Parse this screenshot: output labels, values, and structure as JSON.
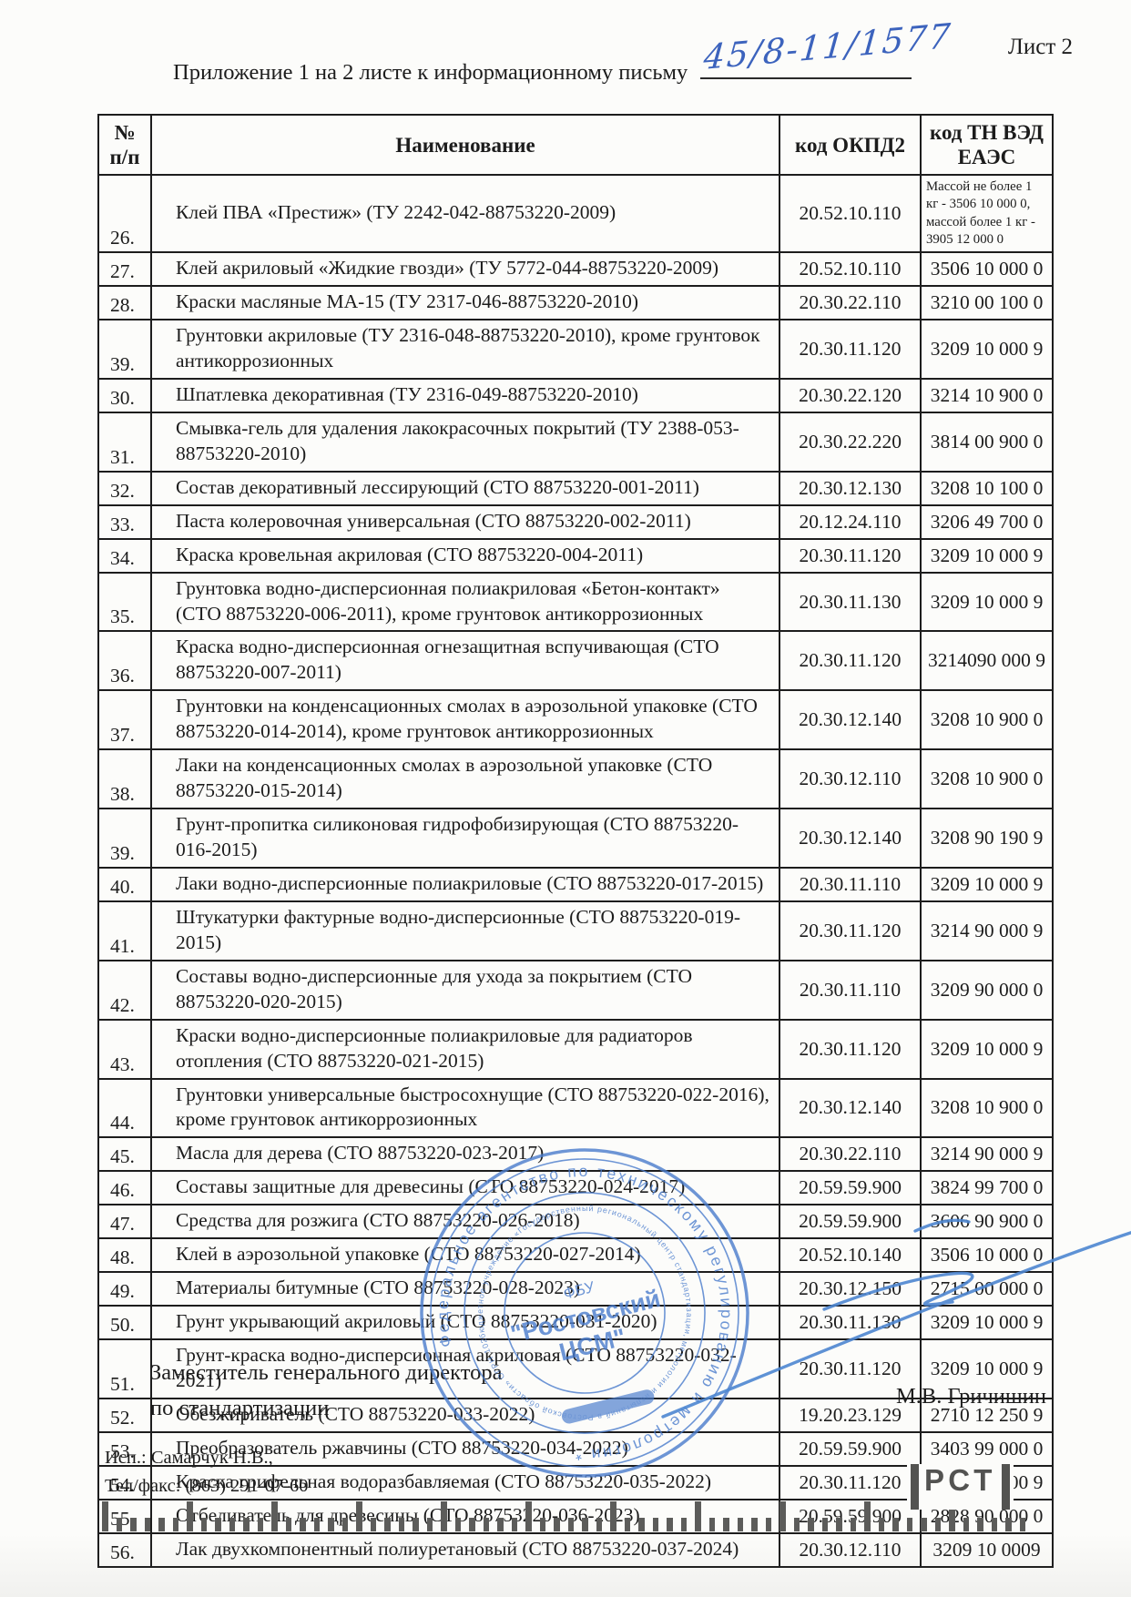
{
  "page": {
    "sheet_label": "Лист 2",
    "title": "Приложение 1 на 2 листе к информационному письму",
    "handwritten_number": "45/8-11/1577"
  },
  "table": {
    "columns": {
      "num_top": "№",
      "num_bottom": "п/п",
      "name": "Наименование",
      "okpd2": "код ОКПД2",
      "tnved": "код ТН ВЭД ЕАЭС"
    },
    "rows": [
      {
        "num": "26.",
        "name": "Клей ПВА «Престиж» (ТУ 2242-042-88753220-2009)",
        "okpd2": "20.52.10.110",
        "tnved": "Массой не более 1 кг - 3506 10 000 0, массой более 1 кг - 3905 12 000 0"
      },
      {
        "num": "27.",
        "name": "Клей акриловый «Жидкие гвозди» (ТУ 5772-044-88753220-2009)",
        "okpd2": "20.52.10.110",
        "tnved": "3506 10 000 0"
      },
      {
        "num": "28.",
        "name": "Краски масляные МА-15 (ТУ 2317-046-88753220-2010)",
        "okpd2": "20.30.22.110",
        "tnved": "3210 00 100 0"
      },
      {
        "num": "39.",
        "name": "Грунтовки акриловые (ТУ 2316-048-88753220-2010), кроме грунтовок антикоррозионных",
        "okpd2": "20.30.11.120",
        "tnved": "3209 10 000 9"
      },
      {
        "num": "30.",
        "name": "Шпатлевка декоративная  (ТУ 2316-049-88753220-2010)",
        "okpd2": "20.30.22.120",
        "tnved": "3214 10 900 0"
      },
      {
        "num": "31.",
        "name": "Смывка-гель для удаления лакокрасочных покрытий (ТУ 2388-053-88753220-2010)",
        "okpd2": "20.30.22.220",
        "tnved": "3814 00 900 0"
      },
      {
        "num": "32.",
        "name": "Состав декоративный лессирующий (СТО 88753220-001-2011)",
        "okpd2": "20.30.12.130",
        "tnved": "3208 10 100 0"
      },
      {
        "num": "33.",
        "name": "Паста колеровочная универсальная (СТО 88753220-002-2011)",
        "okpd2": "20.12.24.110",
        "tnved": "3206 49 700 0"
      },
      {
        "num": "34.",
        "name": "Краска кровельная акриловая (СТО 88753220-004-2011)",
        "okpd2": "20.30.11.120",
        "tnved": "3209 10 000 9"
      },
      {
        "num": "35.",
        "name": "Грунтовка водно-дисперсионная полиакриловая «Бетон-контакт» (СТО 88753220-006-2011), кроме грунтовок антикоррозионных",
        "okpd2": "20.30.11.130",
        "tnved": "3209 10 000 9"
      },
      {
        "num": "36.",
        "name": "Краска водно-дисперсионная огнезащитная вспучивающая (СТО 88753220-007-2011)",
        "okpd2": "20.30.11.120",
        "tnved": "3214090 000 9"
      },
      {
        "num": "37.",
        "name": "Грунтовки на конденсационных смолах в аэрозольной упаковке (СТО 88753220-014-2014), кроме грунтовок антикоррозионных",
        "okpd2": "20.30.12.140",
        "tnved": "3208 10 900 0"
      },
      {
        "num": "38.",
        "name": "Лаки на конденсационных смолах в аэрозольной упаковке (СТО 88753220-015-2014)",
        "okpd2": "20.30.12.110",
        "tnved": "3208 10 900 0"
      },
      {
        "num": "39.",
        "name": "Грунт-пропитка силиконовая гидрофобизирующая (СТО 88753220-016-2015)",
        "okpd2": "20.30.12.140",
        "tnved": "3208 90 190 9"
      },
      {
        "num": "40.",
        "name": "Лаки водно-дисперсионные полиакриловые (СТО 88753220-017-2015)",
        "okpd2": "20.30.11.110",
        "tnved": "3209 10 000 9"
      },
      {
        "num": "41.",
        "name": "Штукатурки фактурные водно-дисперсионные (СТО 88753220-019-2015)",
        "okpd2": "20.30.11.120",
        "tnved": "3214 90 000 9"
      },
      {
        "num": "42.",
        "name": "Составы водно-дисперсионные для ухода за покрытием (СТО 88753220-020-2015)",
        "okpd2": "20.30.11.110",
        "tnved": "3209 90 000 0"
      },
      {
        "num": "43.",
        "name": "Краски водно-дисперсионные полиакриловые для радиаторов отопления (СТО 88753220-021-2015)",
        "okpd2": "20.30.11.120",
        "tnved": "3209 10 000 9"
      },
      {
        "num": "44.",
        "name": "Грунтовки универсальные быстросохнущие (СТО 88753220-022-2016), кроме грунтовок антикоррозионных",
        "okpd2": "20.30.12.140",
        "tnved": "3208 10 900 0"
      },
      {
        "num": "45.",
        "name": "Масла для дерева (СТО 88753220-023-2017)",
        "okpd2": "20.30.22.110",
        "tnved": "3214 90 000 9"
      },
      {
        "num": "46.",
        "name": "Составы защитные для древесины (СТО 88753220-024-2017)",
        "okpd2": "20.59.59.900",
        "tnved": "3824 99 700 0"
      },
      {
        "num": "47.",
        "name": "Средства для розжига (СТО 88753220-026-2018)",
        "okpd2": "20.59.59.900",
        "tnved": "3606 90 900 0"
      },
      {
        "num": "48.",
        "name": "Клей в аэрозольной упаковке (СТО 88753220-027-2014)",
        "okpd2": "20.52.10.140",
        "tnved": "3506 10 000 0"
      },
      {
        "num": "49.",
        "name": "Материалы битумные (СТО 88753220-028-2023)",
        "okpd2": "20.30.12.150",
        "tnved": "2715 00 000 0"
      },
      {
        "num": "50.",
        "name": "Грунт укрывающий акриловый (СТО 88753220-031-2020)",
        "okpd2": "20.30.11.130",
        "tnved": "3209 10 000 9"
      },
      {
        "num": "51.",
        "name": "Грунт-краска водно-дисперсионная акриловая (СТО 88753220-032-2021)",
        "okpd2": "20.30.11.120",
        "tnved": "3209 10 000 9"
      },
      {
        "num": "52.",
        "name": "Обезжириватель (СТО 88753220-033-2022)",
        "okpd2": "19.20.23.129",
        "tnved": "2710 12 250 9"
      },
      {
        "num": "53.",
        "name": "Преобразователь ржавчины (СТО 88753220-034-2022)",
        "okpd2": "20.59.59.900",
        "tnved": "3403 99 000 0"
      },
      {
        "num": "54.",
        "name": "Краска грифельная водоразбавляемая (СТО 88753220-035-2022)",
        "okpd2": "20.30.11.120",
        "tnved": "3209 10 000 9"
      },
      {
        "num": "55.",
        "name": "Отбеливатель для древесины (СТО 88753220-036-2023)",
        "okpd2": "20.59.59.900",
        "tnved": "2828 90 000 0"
      },
      {
        "num": "56.",
        "name": "Лак двухкомпонентный полиуретановый (СТО 88753220-037-2024)",
        "okpd2": "20.30.12.110",
        "tnved": "3209 10 0009"
      }
    ]
  },
  "footer": {
    "position_line1": "Заместитель генерального директора",
    "position_line2": "по стандартизации",
    "signer_name": "М.В. Гричишин",
    "executor_line1": "Исп.: Самарчук Н.В.,",
    "executor_line2": "Тел/факс: (863) 291-07-60"
  },
  "stamp": {
    "outer_text": "Федеральное агентство по техническому регулированию и метрологии  *",
    "middle_text": "бюджетное учреждение «Государственный региональный центр стандартизации, метрологии и испытаний в Ростовской области»  ОГРН 1026103163833  ИНН 6163900840",
    "center_line1": "ФБУ",
    "center_line2": "\"Ростовский",
    "center_line3": "ЦСМ\""
  },
  "logo": {
    "text": "РСТ"
  }
}
